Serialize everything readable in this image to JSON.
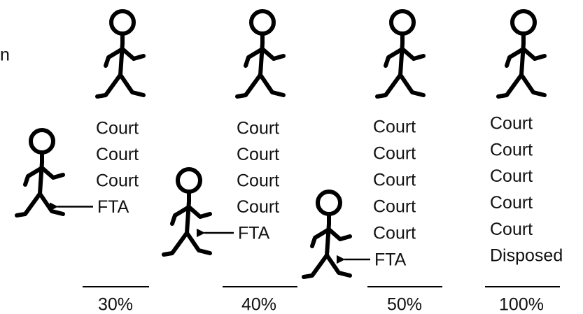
{
  "fragment": "n",
  "columns": [
    {
      "lines": [
        "Court",
        "Court",
        "Court",
        "FTA"
      ],
      "percent": "30%"
    },
    {
      "lines": [
        "Court",
        "Court",
        "Court",
        "Court",
        "FTA"
      ],
      "percent": "40%"
    },
    {
      "lines": [
        "Court",
        "Court",
        "Court",
        "Court",
        "Court",
        "FTA"
      ],
      "percent": "50%"
    },
    {
      "lines": [
        "Court",
        "Court",
        "Court",
        "Court",
        "Court",
        "Disposed"
      ],
      "percent": "100%"
    }
  ]
}
